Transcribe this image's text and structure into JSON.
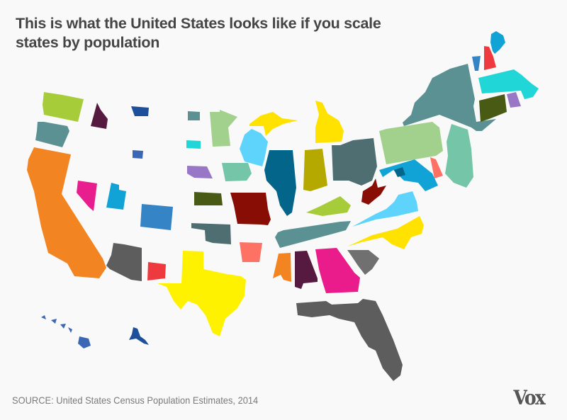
{
  "title": {
    "line1": "This is what the United States looks like if you scale",
    "line2": "states by population"
  },
  "source": "SOURCE: United States Census Population Estimates, 2014",
  "logo": "Vox",
  "state_colors": {
    "WA": "#a6cc3a",
    "OR": "#5b9193",
    "CA": "#f28421",
    "ID": "#561a40",
    "MT": "#1d4f9b",
    "WY": "#3b68b5",
    "ND": "#5b9193",
    "SD": "#21d6d6",
    "NE": "#9877c6",
    "MN": "#a1d18d",
    "IA": "#75c6a8",
    "NV": "#e81d8e",
    "UT": "#12a3d6",
    "CO": "#3484c6",
    "KS": "#485a14",
    "OK": "#4e6e71",
    "MO": "#870d05",
    "AR": "#fd7264",
    "TX": "#fff200",
    "NM": "#ee3a3e",
    "AZ": "#5d5d5d",
    "MI": "#ffe200",
    "WI": "#5ed4fd",
    "IL": "#04658a",
    "IN": "#b5a900",
    "OH": "#4e6e71",
    "KY": "#a6cc3a",
    "TN": "#5b9193",
    "MS": "#f28421",
    "AL": "#561a40",
    "GA": "#ea1c8c",
    "SC": "#707070",
    "FL": "#5d5d5d",
    "NC": "#ffe200",
    "VA": "#5ed4fd",
    "WV": "#870d05",
    "MD": "#12a3d6",
    "DC": "#04658a",
    "DE": "#fd7264",
    "PA": "#a1d18d",
    "NJ": "#75c6a8",
    "NY": "#5b9193",
    "CT": "#485a14",
    "RI": "#9877c6",
    "MA": "#21d6d6",
    "VT": "#3484c6",
    "NH": "#ee3a3e",
    "ME": "#12a3d6",
    "HI": "#3b68b5",
    "AK": "#1d4f9b"
  }
}
